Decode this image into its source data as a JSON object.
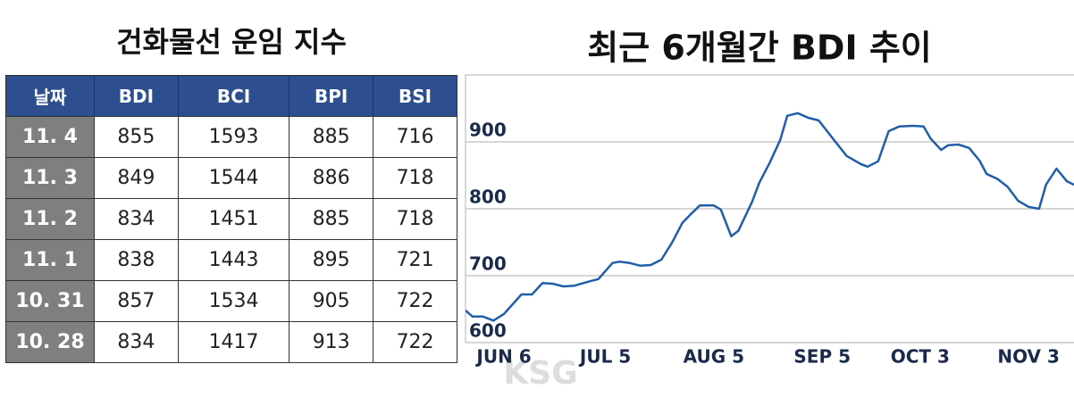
{
  "table": {
    "title": "건화물선 운임 지수",
    "header": [
      "날짜",
      "BDI",
      "BCI",
      "BPI",
      "BSI"
    ],
    "rows": [
      [
        "11. 4",
        855,
        1593,
        885,
        716
      ],
      [
        "11. 3",
        849,
        1544,
        886,
        718
      ],
      [
        "11. 2",
        834,
        1451,
        885,
        718
      ],
      [
        "11. 1",
        838,
        1443,
        895,
        721
      ],
      [
        "10. 31",
        857,
        1534,
        905,
        722
      ],
      [
        "10. 28",
        834,
        1417,
        913,
        722
      ]
    ]
  },
  "chart_data": {
    "type": "line",
    "title": "최근 6개월간 BDI 추이",
    "color": "#1f5ea8",
    "grid": true,
    "x": [
      -11,
      -9,
      -6,
      -3,
      0,
      5,
      8,
      11,
      14,
      17,
      20,
      24,
      27,
      31,
      33,
      36,
      39,
      42,
      45,
      48,
      51,
      54,
      56,
      60,
      62,
      65,
      67,
      71,
      73,
      76,
      79,
      81,
      84,
      87,
      90,
      93,
      96,
      98,
      102,
      104,
      107,
      110,
      113,
      117,
      120,
      122,
      125,
      127,
      130,
      133,
      136,
      138,
      141,
      144,
      147,
      150,
      153,
      155,
      158,
      161,
      163
    ],
    "values": [
      648,
      639,
      639,
      633,
      643,
      672,
      672,
      689,
      688,
      684,
      685,
      691,
      695,
      719,
      721,
      719,
      715,
      716,
      724,
      749,
      779,
      795,
      805,
      805,
      799,
      759,
      767,
      811,
      839,
      869,
      903,
      939,
      943,
      936,
      932,
      912,
      892,
      879,
      867,
      863,
      871,
      916,
      923,
      924,
      923,
      905,
      888,
      895,
      896,
      891,
      872,
      852,
      845,
      833,
      812,
      803,
      800,
      836,
      860,
      841,
      836
    ],
    "xlim": [
      -11,
      163
    ],
    "xticks": [
      {
        "value": 0,
        "label": "JUN 6"
      },
      {
        "value": 29,
        "label": "JUL 5"
      },
      {
        "value": 60,
        "label": "AUG 5"
      },
      {
        "value": 91,
        "label": "SEP 5"
      },
      {
        "value": 119,
        "label": "OCT 3"
      },
      {
        "value": 150,
        "label": "NOV 3"
      }
    ],
    "ylim": [
      600,
      1000
    ],
    "yticks": [
      600,
      700,
      800,
      900
    ]
  },
  "watermark": "KSG"
}
